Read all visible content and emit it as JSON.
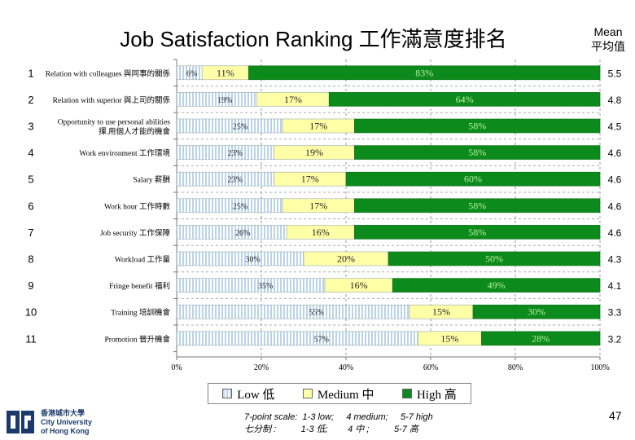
{
  "title": "Job Satisfaction Ranking 工作滿意度排名",
  "mean_header": {
    "en": "Mean",
    "zh": "平均值"
  },
  "colors": {
    "low": "#b9d3ea",
    "medium": "#ffffa8",
    "high": "#0c8a1c"
  },
  "chart_data": {
    "type": "bar",
    "orientation": "horizontal-stacked-100",
    "categories": [
      "Relation with colleagues 與同事的關係",
      "Relation with superior 與上司的關係",
      "Opportunity to use personal abilities|揮.用個人才能的機會",
      "Work environment 工作環境",
      "Salary 薪酬",
      "Work hour 工作時數",
      "Job security 工作保障",
      "Workload 工作量",
      "Fringe benefit 福利",
      "Training 培訓機會",
      "Promotion 晉升機會"
    ],
    "ranks": [
      "1",
      "2",
      "3",
      "4",
      "5",
      "6",
      "7",
      "8",
      "9",
      "10",
      "11"
    ],
    "series": [
      {
        "name": "Low 低",
        "values": [
          6,
          19,
          25,
          23,
          23,
          25,
          26,
          30,
          35,
          55,
          57
        ]
      },
      {
        "name": "Medium 中",
        "values": [
          11,
          17,
          17,
          19,
          17,
          17,
          16,
          20,
          16,
          15,
          15
        ]
      },
      {
        "name": "High 高",
        "values": [
          83,
          64,
          58,
          58,
          60,
          58,
          58,
          50,
          49,
          30,
          28
        ]
      }
    ],
    "means": [
      "5.5",
      "4.8",
      "4.5",
      "4.6",
      "4.6",
      "4.6",
      "4.6",
      "4.3",
      "4.1",
      "3.3",
      "3.2"
    ],
    "xlim": [
      0,
      100
    ],
    "xticks": [
      "0%",
      "20%",
      "40%",
      "60%",
      "80%",
      "100%"
    ],
    "legend_position": "bottom"
  },
  "legend": {
    "low": "Low 低",
    "medium": "Medium 中",
    "high": "High 高"
  },
  "footnote": {
    "line1": "7-point scale:  1-3 low;     4 medium;     5-7 high",
    "line2": "七分制 :          1-3 低;        4 中 ;          5-7 高"
  },
  "page_number": "47",
  "logo": {
    "zh": "香港城市大學",
    "en1": "City University",
    "en2": "of Hong Kong"
  }
}
